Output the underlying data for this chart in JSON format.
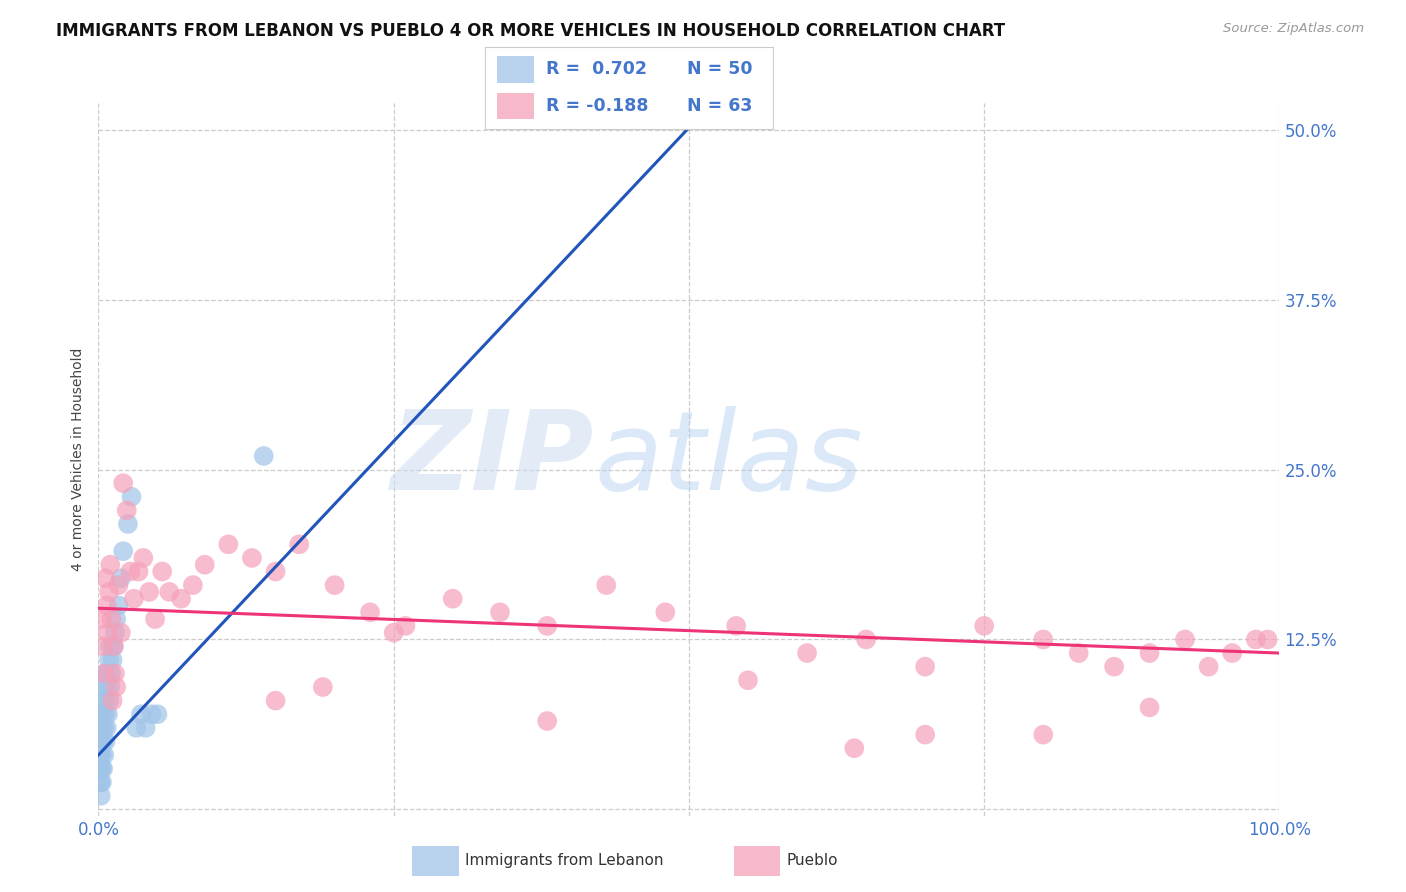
{
  "title": "IMMIGRANTS FROM LEBANON VS PUEBLO 4 OR MORE VEHICLES IN HOUSEHOLD CORRELATION CHART",
  "source": "Source: ZipAtlas.com",
  "ylabel": "4 or more Vehicles in Household",
  "xlim": [
    0.0,
    1.0
  ],
  "ylim": [
    -0.005,
    0.52
  ],
  "ytick_positions": [
    0.0,
    0.125,
    0.25,
    0.375,
    0.5
  ],
  "ytick_labels": [
    "",
    "12.5%",
    "25.0%",
    "37.5%",
    "50.0%"
  ],
  "xtick_positions": [
    0.0,
    0.25,
    0.5,
    0.75,
    1.0
  ],
  "xtick_labels": [
    "0.0%",
    "",
    "",
    "",
    "100.0%"
  ],
  "background_color": "#ffffff",
  "grid_color": "#cccccc",
  "watermark_zip": "ZIP",
  "watermark_atlas": "atlas",
  "blue_color": "#a0c4e8",
  "pink_color": "#f5a0b8",
  "blue_line_color": "#2255bb",
  "pink_line_color": "#ee3377",
  "title_fontsize": 12,
  "axis_label_fontsize": 10,
  "tick_fontsize": 12,
  "legend_color": "#4477cc",
  "blue_scatter_x": [
    0.001,
    0.001,
    0.001,
    0.001,
    0.002,
    0.002,
    0.002,
    0.002,
    0.002,
    0.002,
    0.002,
    0.003,
    0.003,
    0.003,
    0.003,
    0.003,
    0.004,
    0.004,
    0.004,
    0.004,
    0.005,
    0.005,
    0.005,
    0.005,
    0.006,
    0.006,
    0.007,
    0.007,
    0.008,
    0.008,
    0.009,
    0.009,
    0.01,
    0.01,
    0.011,
    0.012,
    0.013,
    0.014,
    0.015,
    0.017,
    0.019,
    0.021,
    0.025,
    0.028,
    0.032,
    0.036,
    0.04,
    0.045,
    0.05,
    0.14
  ],
  "blue_scatter_y": [
    0.02,
    0.03,
    0.04,
    0.05,
    0.01,
    0.02,
    0.03,
    0.04,
    0.05,
    0.06,
    0.07,
    0.02,
    0.03,
    0.04,
    0.06,
    0.08,
    0.03,
    0.05,
    0.07,
    0.09,
    0.04,
    0.06,
    0.08,
    0.1,
    0.05,
    0.07,
    0.06,
    0.09,
    0.07,
    0.1,
    0.08,
    0.11,
    0.09,
    0.12,
    0.1,
    0.11,
    0.12,
    0.13,
    0.14,
    0.15,
    0.17,
    0.19,
    0.21,
    0.23,
    0.06,
    0.07,
    0.06,
    0.07,
    0.07,
    0.26
  ],
  "pink_scatter_x": [
    0.003,
    0.004,
    0.005,
    0.006,
    0.007,
    0.008,
    0.009,
    0.01,
    0.011,
    0.012,
    0.013,
    0.014,
    0.015,
    0.017,
    0.019,
    0.021,
    0.024,
    0.027,
    0.03,
    0.034,
    0.038,
    0.043,
    0.048,
    0.054,
    0.06,
    0.07,
    0.08,
    0.09,
    0.11,
    0.13,
    0.15,
    0.17,
    0.2,
    0.23,
    0.26,
    0.3,
    0.34,
    0.38,
    0.43,
    0.48,
    0.54,
    0.6,
    0.65,
    0.7,
    0.75,
    0.8,
    0.83,
    0.86,
    0.89,
    0.92,
    0.94,
    0.96,
    0.98,
    0.99,
    0.25,
    0.15,
    0.19,
    0.38,
    0.55,
    0.7,
    0.8,
    0.89,
    0.64
  ],
  "pink_scatter_y": [
    0.14,
    0.12,
    0.1,
    0.17,
    0.15,
    0.13,
    0.16,
    0.18,
    0.14,
    0.08,
    0.12,
    0.1,
    0.09,
    0.165,
    0.13,
    0.24,
    0.22,
    0.175,
    0.155,
    0.175,
    0.185,
    0.16,
    0.14,
    0.175,
    0.16,
    0.155,
    0.165,
    0.18,
    0.195,
    0.185,
    0.175,
    0.195,
    0.165,
    0.145,
    0.135,
    0.155,
    0.145,
    0.135,
    0.165,
    0.145,
    0.135,
    0.115,
    0.125,
    0.105,
    0.135,
    0.125,
    0.115,
    0.105,
    0.115,
    0.125,
    0.105,
    0.115,
    0.125,
    0.125,
    0.13,
    0.08,
    0.09,
    0.065,
    0.095,
    0.055,
    0.055,
    0.075,
    0.045
  ],
  "blue_trend_x": [
    0.0,
    0.52
  ],
  "blue_trend_y": [
    0.04,
    0.52
  ],
  "pink_trend_x": [
    0.0,
    1.0
  ],
  "pink_trend_y": [
    0.148,
    0.115
  ]
}
